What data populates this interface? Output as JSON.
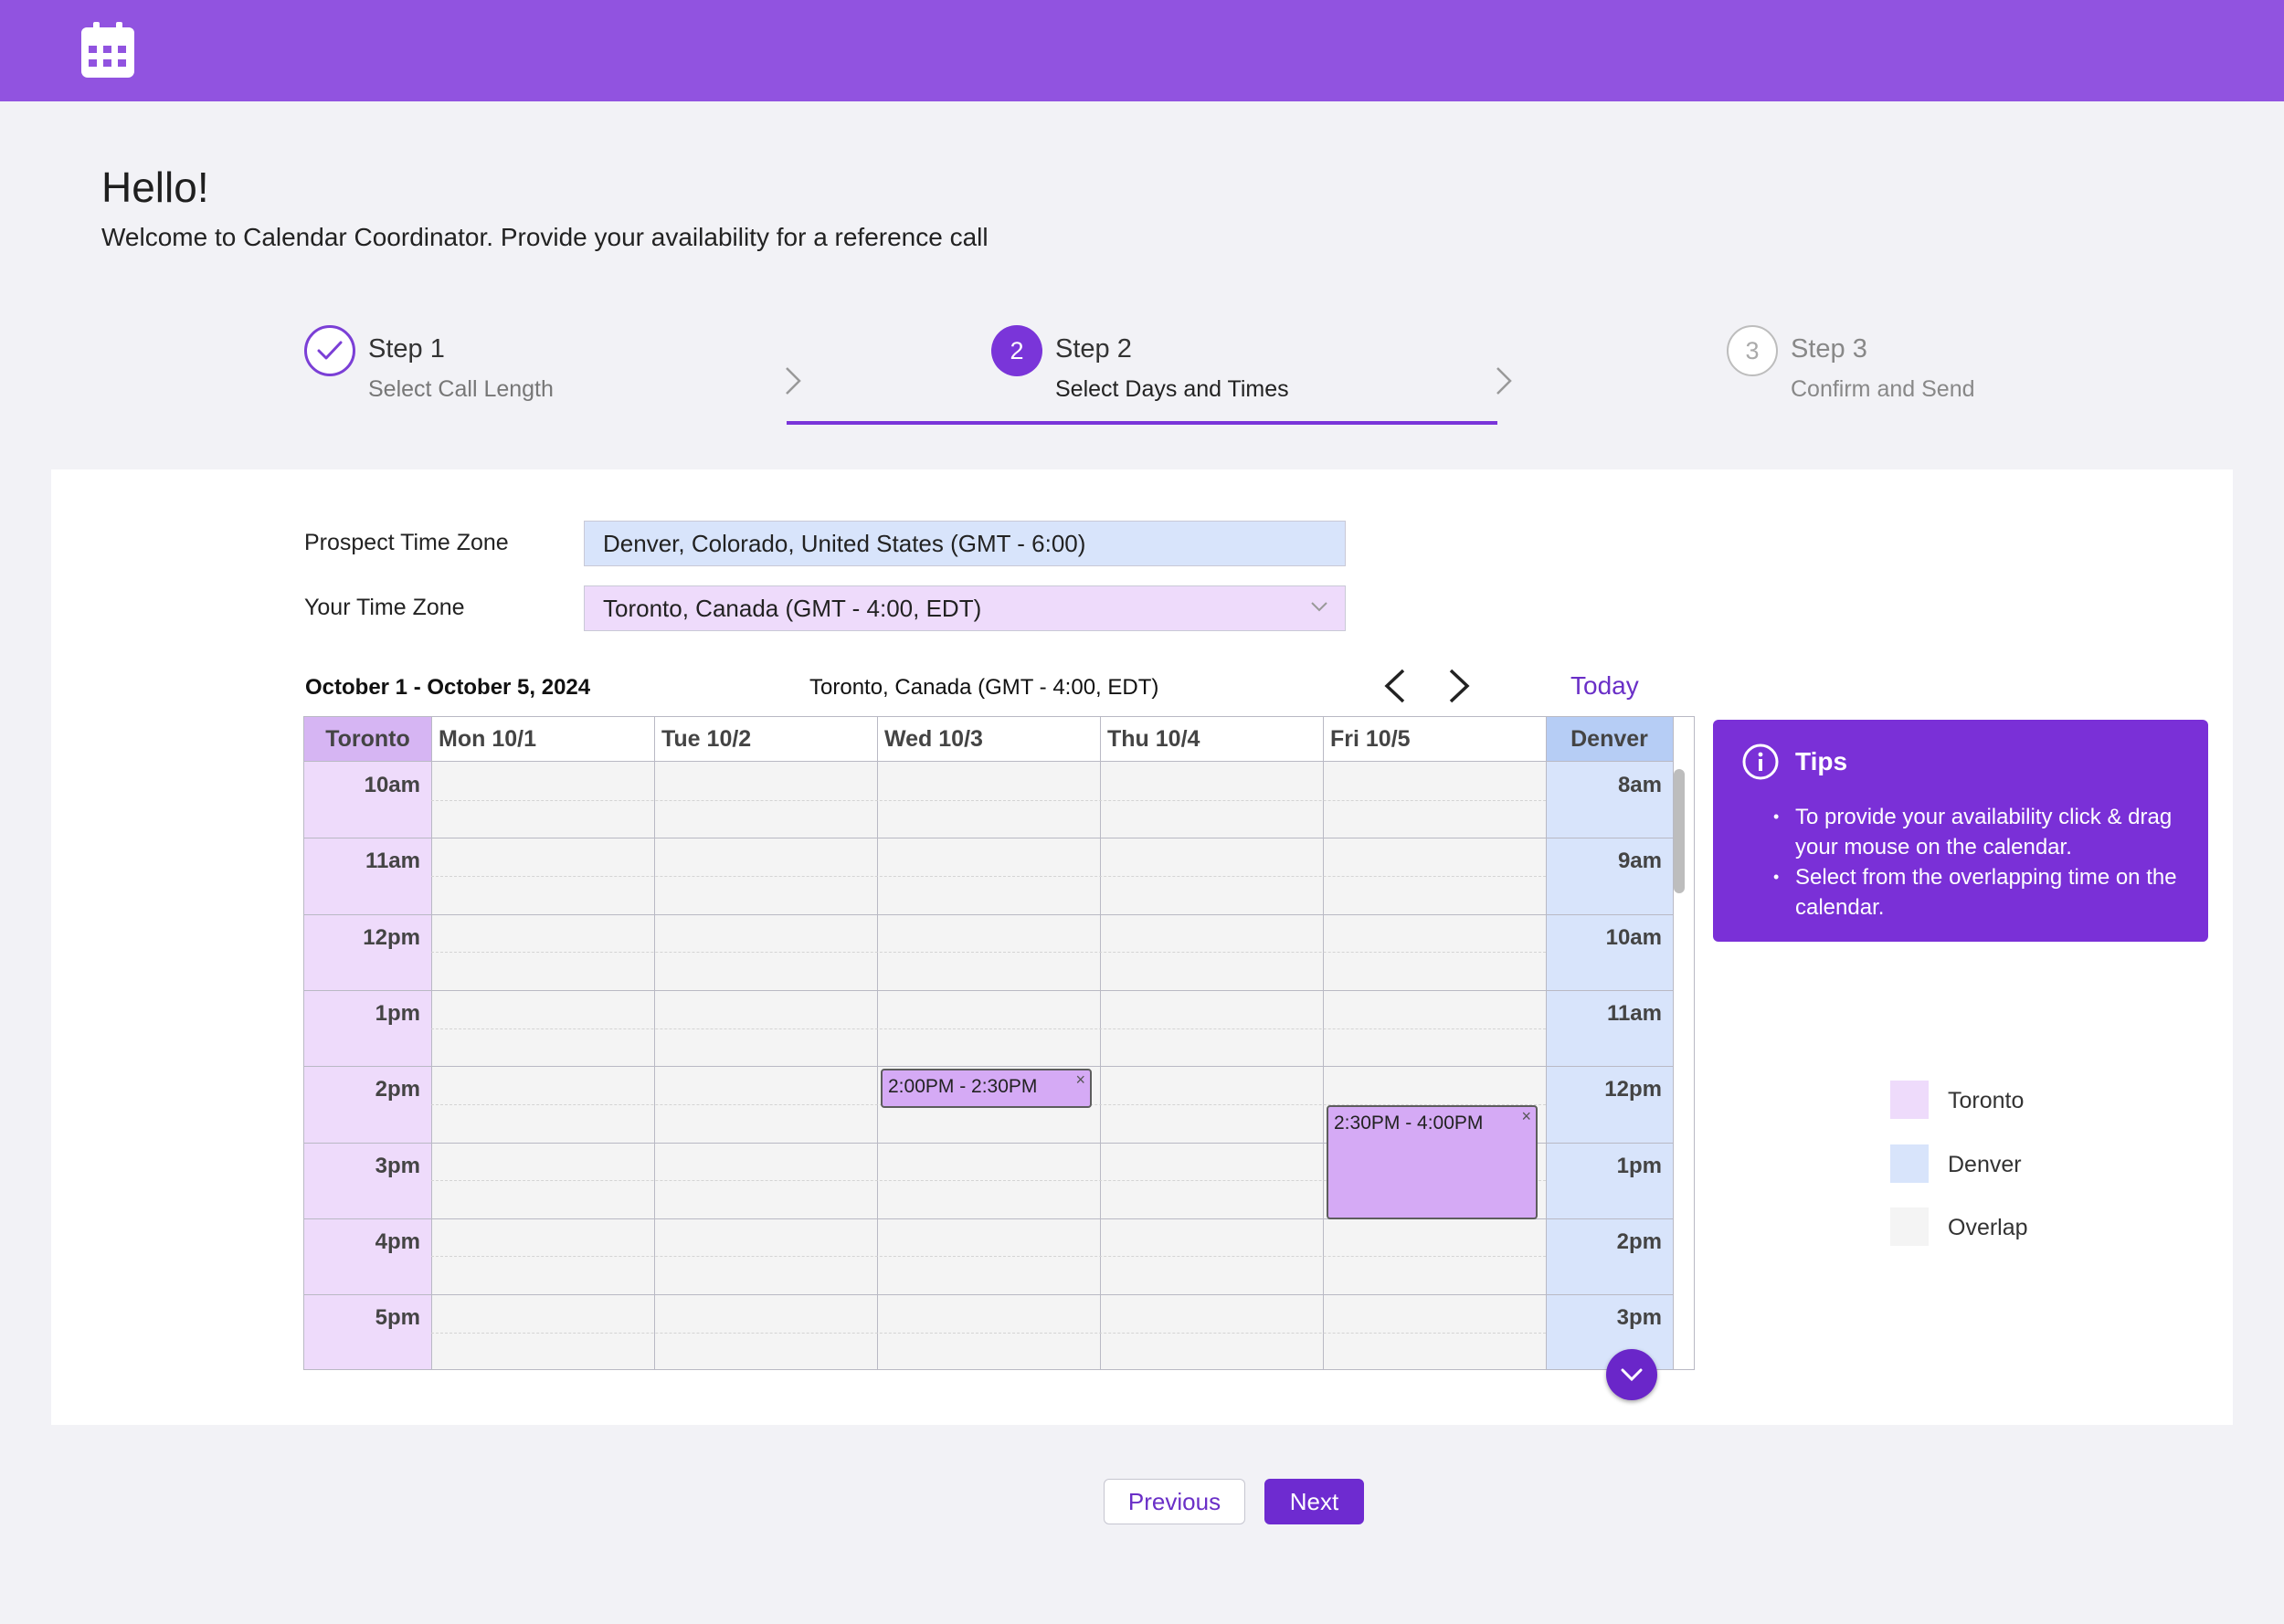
{
  "header": {
    "logo_icon": "calendar-icon",
    "bg_color": "#9153e0"
  },
  "intro": {
    "greeting": "Hello!",
    "welcome": "Welcome to Calendar Coordinator. Provide your availability for a reference call"
  },
  "steps": [
    {
      "title": "Step 1",
      "subtitle": "Select Call Length",
      "marker": "✓",
      "state": "complete"
    },
    {
      "title": "Step 2",
      "subtitle": "Select Days and Times",
      "marker": "2",
      "state": "active"
    },
    {
      "title": "Step 3",
      "subtitle": "Confirm and Send",
      "marker": "3",
      "state": "upcoming"
    }
  ],
  "timezones": {
    "prospect_label": "Prospect Time Zone",
    "prospect_value": "Denver, Colorado, United States (GMT - 6:00)",
    "yours_label": "Your Time Zone",
    "yours_value": "Toronto, Canada (GMT - 4:00, EDT)"
  },
  "calendar": {
    "range": "October 1 - October 5, 2024",
    "current_tz": "Toronto, Canada (GMT - 4:00, EDT)",
    "today_label": "Today",
    "left_tz_header": "Toronto",
    "right_tz_header": "Denver",
    "days": [
      "Mon 10/1",
      "Tue 10/2",
      "Wed 10/3",
      "Thu 10/4",
      "Fri 10/5"
    ],
    "left_hours": [
      "10am",
      "11am",
      "12pm",
      "1pm",
      "2pm",
      "3pm",
      "4pm",
      "5pm"
    ],
    "right_hours": [
      "8am",
      "9am",
      "10am",
      "11am",
      "12pm",
      "1pm",
      "2pm",
      "3pm"
    ],
    "events": [
      {
        "day": "Wed 10/3",
        "label": "2:00PM - 2:30PM",
        "close": "×"
      },
      {
        "day": "Fri 10/5",
        "label": "2:30PM - 4:00PM",
        "close": "×"
      }
    ],
    "colors": {
      "toronto": "#eedbfb",
      "toronto_header": "#d6b5f3",
      "denver": "#d8e4fb",
      "denver_header": "#b6cdf5",
      "overlap": "#f4f4f4",
      "event": "#d5aaf5"
    }
  },
  "tips": {
    "title": "Tips",
    "items": [
      "To provide your availability click & drag your mouse on the calendar.",
      "Select from the overlapping time on the calendar."
    ]
  },
  "legend": [
    {
      "label": "Toronto",
      "color": "#eedbfb"
    },
    {
      "label": "Denver",
      "color": "#d8e4fb"
    },
    {
      "label": "Overlap",
      "color": "#f4f4f4"
    }
  ],
  "footer": {
    "previous_label": "Previous",
    "next_label": "Next"
  }
}
